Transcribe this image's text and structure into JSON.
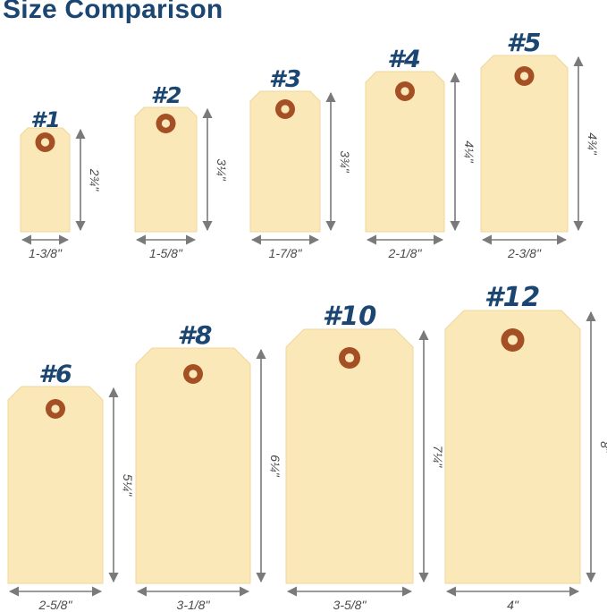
{
  "title": "Size Comparison",
  "colors": {
    "title": "#1b4672",
    "tag_fill": "#fbe8b8",
    "tag_edge": "#efd79c",
    "eyelet_outer": "#a44f24",
    "eyelet_inner": "#fbe8b8",
    "label": "#1b4672",
    "dimension_line": "#7a7a7a",
    "dimension_text": "#4a4a4a"
  },
  "tags": [
    {
      "label": "#1",
      "width": "1-3/8\"",
      "height": "2¾\""
    },
    {
      "label": "#2",
      "width": "1-5/8\"",
      "height": "3¼\""
    },
    {
      "label": "#3",
      "width": "1-7/8\"",
      "height": "3¾\""
    },
    {
      "label": "#4",
      "width": "2-1/8\"",
      "height": "4¼\""
    },
    {
      "label": "#5",
      "width": "2-3/8\"",
      "height": "4¾\""
    },
    {
      "label": "#6",
      "width": "2-5/8\"",
      "height": "5¼\""
    },
    {
      "label": "#8",
      "width": "3-1/8\"",
      "height": "6¼\""
    },
    {
      "label": "#10",
      "width": "3-5/8\"",
      "height": "7¼\""
    },
    {
      "label": "#12",
      "width": "4\"",
      "height": "8\""
    }
  ]
}
